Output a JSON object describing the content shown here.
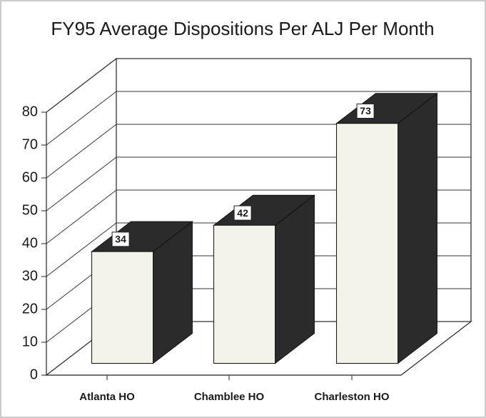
{
  "chart_data": {
    "type": "bar3d",
    "title": "FY95 Average Dispositions Per ALJ Per Month",
    "categories": [
      "Atlanta HO",
      "Chamblee HO",
      "Charleston HO"
    ],
    "values": [
      34,
      42,
      73
    ],
    "ylim": [
      0,
      80
    ],
    "yticks": [
      0,
      10,
      20,
      30,
      40,
      50,
      60,
      70,
      80
    ],
    "grid": true,
    "color": "#f3f3ea",
    "side_color": "#2b2b2b"
  }
}
